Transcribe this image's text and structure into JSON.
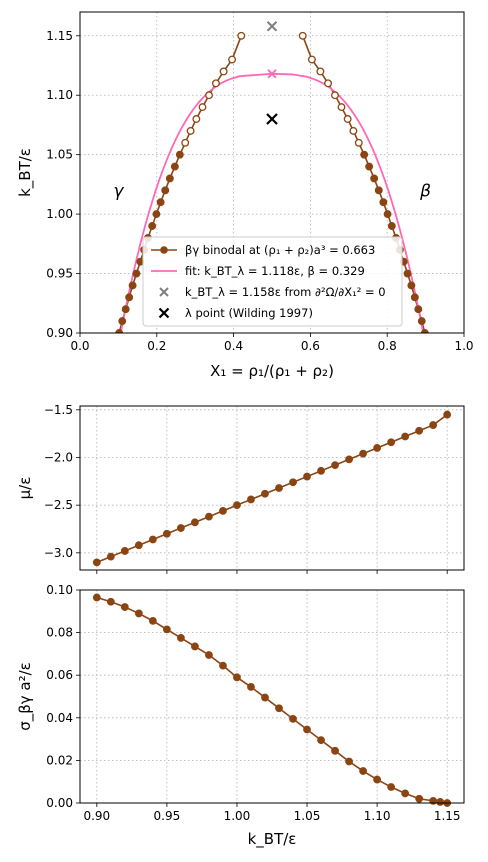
{
  "chart_data": [
    {
      "type": "line",
      "xlabel": "X₁ = ρ₁/(ρ₁ + ρ₂)",
      "ylabel": "k_BT/ε",
      "xlim": [
        0.0,
        1.0
      ],
      "ylim": [
        0.9,
        1.17
      ],
      "xticks": [
        "0.0",
        "0.2",
        "0.4",
        "0.6",
        "0.8",
        "1.0"
      ],
      "yticks": [
        "0.90",
        "0.95",
        "1.00",
        "1.05",
        "1.10",
        "1.15"
      ],
      "grid": true,
      "legend_position": "lower center",
      "annotations": [
        "γ",
        "β"
      ],
      "series": [
        {
          "name": "βγ binodal at (ρ₁ + ρ₂)a³ = 0.663",
          "color": "#8b4513",
          "left_branch": {
            "x": [
              0.102,
              0.11,
              0.119,
              0.128,
              0.137,
              0.147,
              0.157,
              0.167,
              0.177,
              0.188,
              0.199,
              0.21,
              0.222,
              0.234,
              0.247,
              0.26,
              0.274,
              0.288,
              0.303,
              0.319,
              0.336,
              0.354,
              0.374,
              0.396,
              0.42
            ],
            "y": [
              0.9,
              0.91,
              0.92,
              0.93,
              0.94,
              0.95,
              0.96,
              0.97,
              0.98,
              0.99,
              1.0,
              1.01,
              1.02,
              1.03,
              1.04,
              1.05,
              1.06,
              1.07,
              1.08,
              1.09,
              1.1,
              1.11,
              1.12,
              1.13,
              1.15
            ]
          },
          "right_branch": {
            "x": [
              0.898,
              0.89,
              0.881,
              0.872,
              0.863,
              0.853,
              0.843,
              0.833,
              0.823,
              0.812,
              0.801,
              0.79,
              0.778,
              0.766,
              0.753,
              0.74,
              0.726,
              0.712,
              0.697,
              0.681,
              0.664,
              0.646,
              0.626,
              0.604,
              0.58
            ],
            "y": [
              0.9,
              0.91,
              0.92,
              0.93,
              0.94,
              0.95,
              0.96,
              0.97,
              0.98,
              0.99,
              1.0,
              1.01,
              1.02,
              1.03,
              1.04,
              1.05,
              1.06,
              1.07,
              1.08,
              1.09,
              1.1,
              1.11,
              1.12,
              1.13,
              1.15
            ]
          }
        },
        {
          "name": "fit: k_BT_λ = 1.118ε, β = 0.329",
          "color": "#ff69b4",
          "T_lambda": 1.118,
          "beta": 0.329
        },
        {
          "name": "k_BT_λ = 1.158ε from ∂²Ω/∂X₁² = 0",
          "color": "#808080",
          "x": [
            0.5
          ],
          "y": [
            1.158
          ]
        },
        {
          "name": "λ point (Wilding 1997)",
          "color": "#000000",
          "x": [
            0.5
          ],
          "y": [
            1.08
          ]
        }
      ]
    },
    {
      "type": "line",
      "xlabel": "",
      "ylabel": "μ/ε",
      "xlim": [
        0.888,
        1.162
      ],
      "ylim": [
        -3.18,
        -1.46
      ],
      "yticks": [
        "−1.5",
        "−2.0",
        "−2.5",
        "−3.0"
      ],
      "grid": true,
      "series": [
        {
          "color": "#8b4513",
          "x": [
            0.9,
            0.91,
            0.92,
            0.93,
            0.94,
            0.95,
            0.96,
            0.97,
            0.98,
            0.99,
            1.0,
            1.01,
            1.02,
            1.03,
            1.04,
            1.05,
            1.06,
            1.07,
            1.08,
            1.09,
            1.1,
            1.11,
            1.12,
            1.13,
            1.14,
            1.15
          ],
          "y": [
            -3.1,
            -3.04,
            -2.98,
            -2.92,
            -2.86,
            -2.8,
            -2.74,
            -2.68,
            -2.62,
            -2.56,
            -2.5,
            -2.44,
            -2.38,
            -2.32,
            -2.26,
            -2.2,
            -2.14,
            -2.08,
            -2.02,
            -1.96,
            -1.9,
            -1.84,
            -1.78,
            -1.72,
            -1.66,
            -1.55
          ]
        }
      ]
    },
    {
      "type": "line",
      "xlabel": "k_BT/ε",
      "ylabel": "σ_βγ a²/ε",
      "xlim": [
        0.888,
        1.162
      ],
      "ylim": [
        0.0,
        0.1
      ],
      "xticks": [
        "0.90",
        "0.95",
        "1.00",
        "1.05",
        "1.10",
        "1.15"
      ],
      "yticks": [
        "0.00",
        "0.02",
        "0.04",
        "0.06",
        "0.08",
        "0.10"
      ],
      "grid": true,
      "series": [
        {
          "color": "#8b4513",
          "x": [
            0.9,
            0.91,
            0.92,
            0.93,
            0.94,
            0.95,
            0.96,
            0.97,
            0.98,
            0.99,
            1.0,
            1.01,
            1.02,
            1.03,
            1.04,
            1.05,
            1.06,
            1.07,
            1.08,
            1.09,
            1.1,
            1.11,
            1.12,
            1.13,
            1.14,
            1.145,
            1.15
          ],
          "y": [
            0.0965,
            0.0945,
            0.092,
            0.089,
            0.0855,
            0.0815,
            0.0775,
            0.0735,
            0.0695,
            0.0645,
            0.059,
            0.0545,
            0.0495,
            0.0445,
            0.0395,
            0.0345,
            0.0295,
            0.0245,
            0.0195,
            0.015,
            0.011,
            0.0075,
            0.0045,
            0.002,
            0.001,
            0.0005,
            0.0
          ]
        }
      ]
    }
  ]
}
